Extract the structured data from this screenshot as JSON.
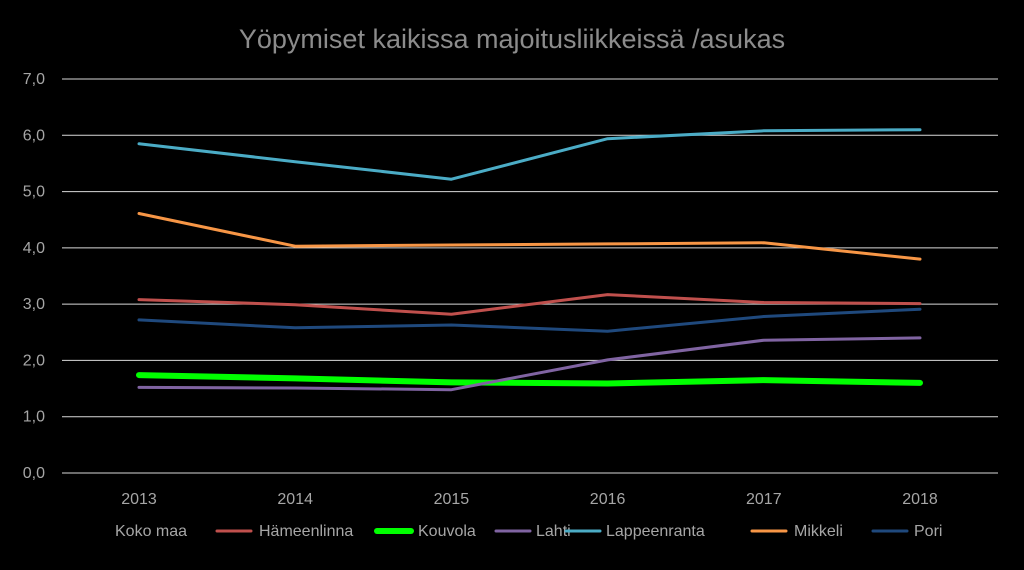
{
  "chart_data": {
    "type": "line",
    "title": "Yöpymiset kaikissa majoitusliikkeissä /asukas",
    "xlabel": "",
    "ylabel": "",
    "categories": [
      "2013",
      "2014",
      "2015",
      "2016",
      "2017",
      "2018"
    ],
    "ylim": [
      0,
      7
    ],
    "yticks": [
      "0,0",
      "1,0",
      "2,0",
      "3,0",
      "4,0",
      "5,0",
      "6,0",
      "7,0"
    ],
    "grid": true,
    "legend_position": "bottom",
    "series": [
      {
        "name": "Koko maa",
        "color": "#000000",
        "stroke": 2,
        "values": [
          3.08,
          2.99,
          2.82,
          3.17,
          3.03,
          3.01
        ]
      },
      {
        "name": "Hämeenlinna",
        "color": "#c0504d",
        "stroke": 3,
        "values": [
          3.08,
          2.99,
          2.82,
          3.17,
          3.03,
          3.01
        ]
      },
      {
        "name": "Kouvola",
        "color": "#00ff00",
        "stroke": 6,
        "values": [
          1.74,
          1.68,
          1.61,
          1.59,
          1.65,
          1.6
        ]
      },
      {
        "name": "Lahti",
        "color": "#8064a2",
        "stroke": 3,
        "values": [
          1.52,
          1.51,
          1.48,
          2.01,
          2.36,
          2.4
        ]
      },
      {
        "name": "Lappeenranta",
        "color": "#4bacc6",
        "stroke": 3,
        "values": [
          5.85,
          5.53,
          5.22,
          5.94,
          6.08,
          6.1
        ]
      },
      {
        "name": "Mikkeli",
        "color": "#f79646",
        "stroke": 3,
        "values": [
          4.61,
          4.03,
          4.05,
          4.07,
          4.09,
          3.8
        ]
      },
      {
        "name": "Pori",
        "color": "#1f497d",
        "stroke": 3,
        "values": [
          2.72,
          2.58,
          2.63,
          2.52,
          2.78,
          2.91
        ]
      }
    ]
  }
}
